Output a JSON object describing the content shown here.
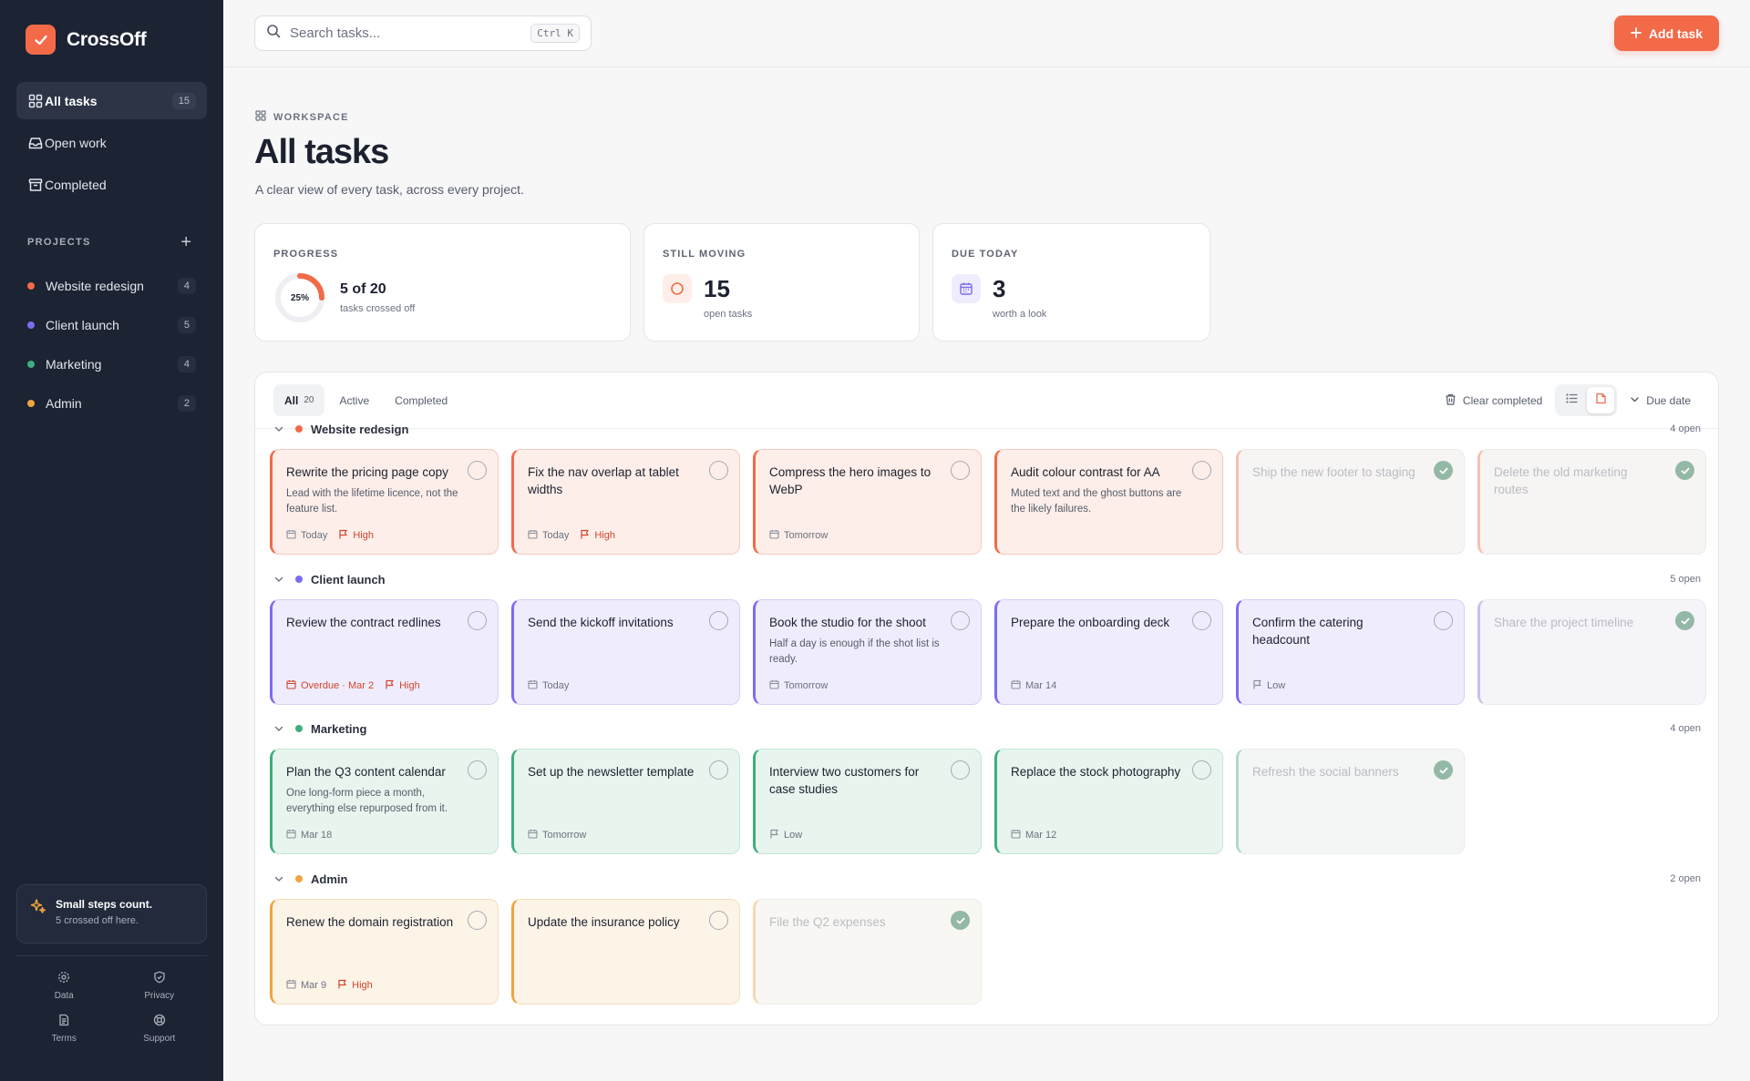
{
  "app": {
    "name": "CrossOff"
  },
  "nav": [
    {
      "label": "All tasks",
      "count": "15",
      "icon": "grid-icon"
    },
    {
      "label": "Open work",
      "icon": "inbox-icon"
    },
    {
      "label": "Completed",
      "icon": "archive-icon"
    }
  ],
  "projects_section": {
    "title": "PROJECTS",
    "items": [
      {
        "label": "Website redesign",
        "count": "4",
        "color": "#f26a48"
      },
      {
        "label": "Client launch",
        "count": "5",
        "color": "#7b6cf0"
      },
      {
        "label": "Marketing",
        "count": "4",
        "color": "#3fae7e"
      },
      {
        "label": "Admin",
        "count": "2",
        "color": "#f0a53e"
      }
    ]
  },
  "motivation": {
    "title": "Small steps count.",
    "subtitle": "5 crossed off here."
  },
  "footer_links": [
    {
      "label": "Data",
      "icon": "gear-icon"
    },
    {
      "label": "Privacy",
      "icon": "shield-icon"
    },
    {
      "label": "Terms",
      "icon": "document-icon"
    },
    {
      "label": "Support",
      "icon": "lifebuoy-icon"
    }
  ],
  "search": {
    "placeholder": "Search tasks...",
    "shortcut": "Ctrl K"
  },
  "add_button": "Add task",
  "header": {
    "breadcrumb": "WORKSPACE",
    "title": "All tasks",
    "subtitle": "A clear view of every task, across every project."
  },
  "stats": {
    "progress": {
      "label": "PROGRESS",
      "percent_text": "25%",
      "percent_value": 0.25,
      "value": "5 of 20",
      "caption": "tasks crossed off"
    },
    "still_moving": {
      "label": "STILL MOVING",
      "value": "15",
      "caption": "open tasks"
    },
    "due_today": {
      "label": "DUE TODAY",
      "value": "3",
      "caption": "worth a look"
    }
  },
  "toolbar": {
    "filters": [
      {
        "label": "All",
        "count": "20"
      },
      {
        "label": "Active"
      },
      {
        "label": "Completed"
      }
    ],
    "clear_completed": "Clear completed",
    "sort": "Due date"
  },
  "colors": {
    "accent": "#f26a48",
    "high": "#d0452a"
  },
  "groups": [
    {
      "name": "Website redesign",
      "open": "4 open",
      "color": "#f26a48",
      "bg": "#fdeee9",
      "border": "#f6c9bd",
      "tasks": [
        {
          "title": "Rewrite the pricing page copy",
          "desc": "Lead with the lifetime licence, not the feature list.",
          "due": "Today",
          "priority": "High",
          "done": false
        },
        {
          "title": "Fix the nav overlap at tablet widths",
          "desc": "",
          "due": "Today",
          "priority": "High",
          "done": false
        },
        {
          "title": "Compress the hero images to WebP",
          "desc": "",
          "due": "Tomorrow",
          "priority": "",
          "done": false
        },
        {
          "title": "Audit colour contrast for AA",
          "desc": "Muted text and the ghost buttons are the likely failures.",
          "due": "",
          "priority": "",
          "done": false
        },
        {
          "title": "Ship the new footer to staging",
          "desc": "",
          "due": "",
          "priority": "",
          "done": true
        },
        {
          "title": "Delete the old marketing routes",
          "desc": "",
          "due": "",
          "priority": "",
          "done": true
        }
      ]
    },
    {
      "name": "Client launch",
      "open": "5 open",
      "color": "#7b6cf0",
      "bg": "#efedfd",
      "border": "#d5d0f8",
      "tasks": [
        {
          "title": "Review the contract redlines",
          "desc": "",
          "due": "Overdue · Mar 2",
          "overdue": true,
          "priority": "High",
          "done": false
        },
        {
          "title": "Send the kickoff invitations",
          "desc": "",
          "due": "Today",
          "priority": "",
          "done": false
        },
        {
          "title": "Book the studio for the shoot",
          "desc": "Half a day is enough if the shot list is ready.",
          "due": "Tomorrow",
          "priority": "",
          "done": false
        },
        {
          "title": "Prepare the onboarding deck",
          "desc": "",
          "due": "Mar 14",
          "priority": "",
          "done": false
        },
        {
          "title": "Confirm the catering headcount",
          "desc": "",
          "due": "",
          "priority": "Low",
          "done": false
        },
        {
          "title": "Share the project timeline",
          "desc": "",
          "due": "",
          "priority": "",
          "done": true
        }
      ]
    },
    {
      "name": "Marketing",
      "open": "4 open",
      "color": "#3fae7e",
      "bg": "#e7f5ee",
      "border": "#c3e5d3",
      "tasks": [
        {
          "title": "Plan the Q3 content calendar",
          "desc": "One long-form piece a month, everything else repurposed from it.",
          "due": "Mar 18",
          "priority": "",
          "done": false
        },
        {
          "title": "Set up the newsletter template",
          "desc": "",
          "due": "Tomorrow",
          "priority": "",
          "done": false
        },
        {
          "title": "Interview two customers for case studies",
          "desc": "",
          "due": "",
          "priority": "Low",
          "done": false
        },
        {
          "title": "Replace the stock photography",
          "desc": "",
          "due": "Mar 12",
          "priority": "",
          "done": false
        },
        {
          "title": "Refresh the social banners",
          "desc": "",
          "due": "",
          "priority": "",
          "done": true
        }
      ]
    },
    {
      "name": "Admin",
      "open": "2 open",
      "color": "#f0a53e",
      "bg": "#fdf4e8",
      "border": "#f5dfbd",
      "tasks": [
        {
          "title": "Renew the domain registration",
          "desc": "",
          "due": "Mar 9",
          "priority": "High",
          "done": false
        },
        {
          "title": "Update the insurance policy",
          "desc": "",
          "due": "",
          "priority": "",
          "done": false
        },
        {
          "title": "File the Q2 expenses",
          "desc": "",
          "due": "",
          "priority": "",
          "done": true
        }
      ]
    }
  ]
}
